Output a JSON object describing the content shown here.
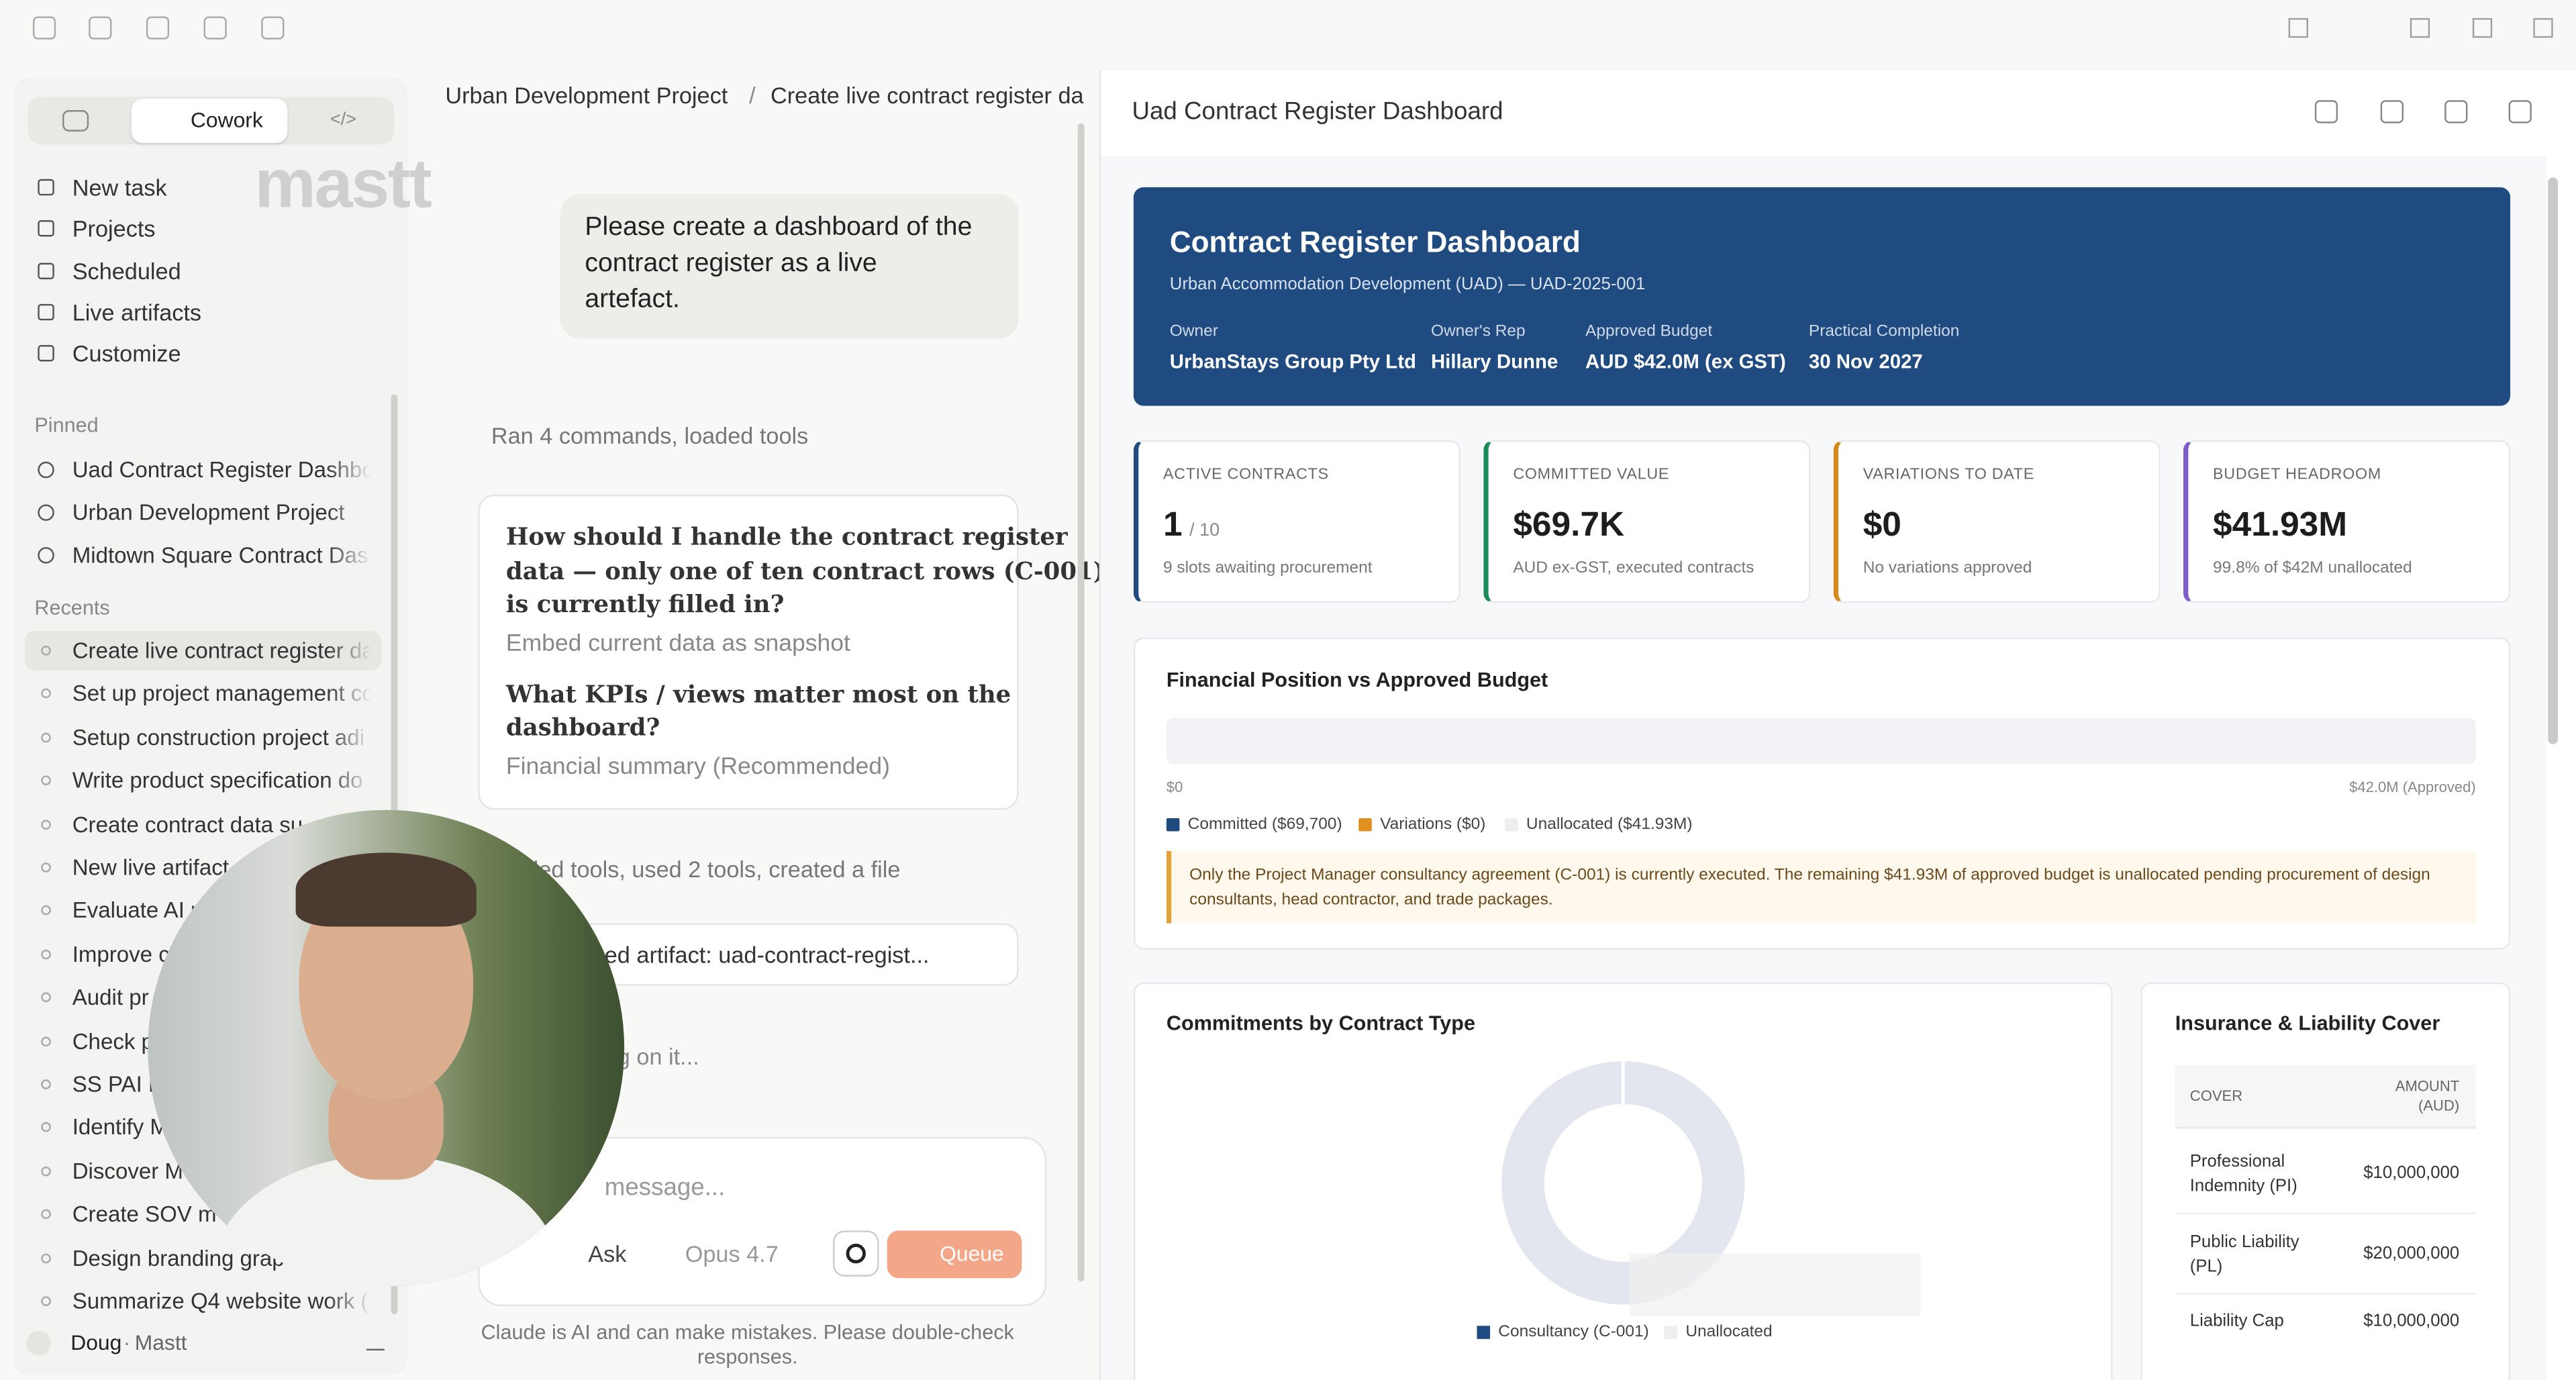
{
  "sidebar": {
    "tab": "Cowork",
    "watermark": "mastt",
    "nav": [
      "New task",
      "Projects",
      "Scheduled",
      "Live artifacts",
      "Customize"
    ],
    "pinned_label": "Pinned",
    "pinned": [
      "Uad Contract Register Dashbo",
      "Urban Development Project",
      "Midtown Square Contract Das"
    ],
    "recents_label": "Recents",
    "recents": [
      "Create live contract register da",
      "Set up project management co",
      "Setup construction project adi",
      "Write product specification do",
      "Create contract data su",
      "New live artifact",
      "Evaluate AI r",
      "Improve c",
      "Audit pr",
      "Check p",
      "SS PAI R",
      "Identify M",
      "Discover M",
      "Create SOV m",
      "Design branding grap",
      "Summarize Q4 website work ("
    ],
    "user": {
      "name": "Doug",
      "org": "Mastt"
    }
  },
  "chat": {
    "breadcrumb": [
      "Urban Development Project",
      "Create live contract register da"
    ],
    "user_message": [
      "Please create a dashboard of the",
      "contract register as a live",
      "artefact."
    ],
    "status1": "Ran 4 commands, loaded tools",
    "questions": [
      {
        "q": [
          "How should I handle the contract register",
          "data — only one of ten contract rows (C-001)",
          "is currently filled in?"
        ],
        "a": "Embed current data as snapshot"
      },
      {
        "q": [
          "What KPIs / views matter most on the",
          "dashboard?"
        ],
        "a": "Financial summary (Recommended)"
      }
    ],
    "status2": "ded tools, used 2 tools, created a file",
    "artifact_link": "ed artifact: uad-contract-regist...",
    "working": "ng on it...",
    "input_placeholder": "message...",
    "mode": "Ask",
    "model": "Opus 4.7",
    "queue": "Queue",
    "disclaimer": [
      "Claude is AI and can make mistakes. Please double-check",
      "responses."
    ]
  },
  "artifact": {
    "title": "Uad Contract Register Dashboard",
    "header": {
      "title": "Contract Register Dashboard",
      "subtitle": "Urban Accommodation Development (UAD) — UAD-2025-001",
      "fields": [
        {
          "label": "Owner",
          "value": "UrbanStays Group Pty Ltd"
        },
        {
          "label": "Owner's Rep",
          "value": "Hillary Dunne"
        },
        {
          "label": "Approved Budget",
          "value": "AUD $42.0M (ex GST)"
        },
        {
          "label": "Practical Completion",
          "value": "30 Nov 2027"
        }
      ]
    },
    "kpis": [
      {
        "label": "ACTIVE CONTRACTS",
        "value": "1",
        "unit": "/ 10",
        "note": "9 slots awaiting procurement"
      },
      {
        "label": "COMMITTED VALUE",
        "value": "$69.7K",
        "note": "AUD ex-GST, executed contracts"
      },
      {
        "label": "VARIATIONS TO DATE",
        "value": "$0",
        "note": "No variations approved"
      },
      {
        "label": "BUDGET HEADROOM",
        "value": "$41.93M",
        "note": "99.8% of $42M unallocated"
      }
    ],
    "financial": {
      "title": "Financial Position vs Approved Budget",
      "axis_min": "$0",
      "axis_max": "$42.0M (Approved)",
      "legend": [
        "Committed ($69,700)",
        "Variations ($0)",
        "Unallocated ($41.93M)"
      ],
      "note": [
        "Only the Project Manager consultancy agreement (C-001) is currently executed. The remaining $41.93M of approved budget is unallocated pending procurement of design",
        "consultants, head contractor, and trade packages."
      ]
    },
    "commitments": {
      "title": "Commitments by Contract Type",
      "legend": [
        "Consultancy (C-001)",
        "Unallocated"
      ]
    },
    "insurance": {
      "title": "Insurance & Liability Cover",
      "columns": [
        "COVER",
        [
          "AMOUNT",
          "(AUD)"
        ]
      ],
      "rows": [
        [
          [
            "Professional",
            "Indemnity (PI)"
          ],
          "$10,000,000"
        ],
        [
          [
            "Public Liability",
            "(PL)"
          ],
          "$20,000,000"
        ],
        [
          [
            "Liability Cap"
          ],
          "$10,000,000"
        ]
      ]
    }
  }
}
